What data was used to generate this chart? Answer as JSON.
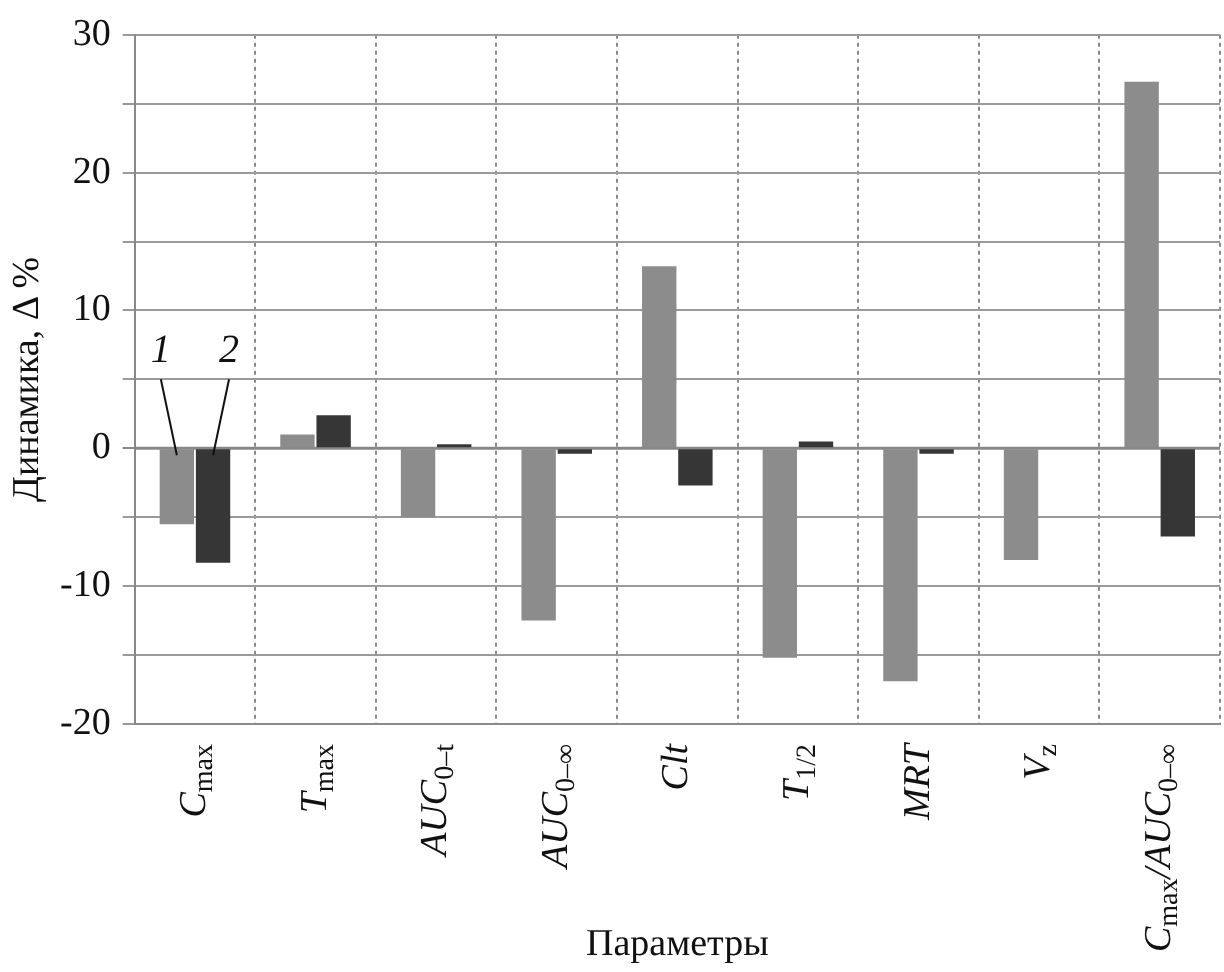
{
  "chart_data": {
    "type": "bar",
    "xlabel": "Параметры",
    "ylabel": "Динамика, Δ %",
    "categories": [
      "C$_{max}$",
      "T$_{max}$",
      "AUC$_{0–t}$",
      "AUC$_{0–∞}$",
      "Clt",
      "T$_{1/2}$",
      "MRT",
      "V$_{z}$",
      "C$_{max}$/AUC$_{0–∞}$"
    ],
    "series": [
      {
        "color": "#8c8c8c",
        "values": [
          -5.5,
          1.0,
          -5.0,
          -12.5,
          13.2,
          -15.2,
          -16.9,
          -8.1,
          26.6
        ]
      },
      {
        "color": "#363636",
        "values": [
          -8.3,
          2.4,
          0.3,
          -0.4,
          -2.7,
          0.5,
          -0.4,
          0,
          -6.4
        ]
      }
    ],
    "ylim": [
      -20,
      30
    ],
    "yticks": [
      -20,
      {
        "value": -15,
        "label": null
      },
      -10,
      {
        "value": -5,
        "label": null
      },
      0,
      {
        "value": 5,
        "label": null
      },
      10,
      {
        "value": 15,
        "label": null
      },
      20,
      {
        "value": 25,
        "label": null
      },
      30
    ],
    "annotations": [
      {
        "text": "1",
        "x": "C$_{max}$",
        "y": -0.5
      },
      {
        "text": "2",
        "x": "C$_{max}$",
        "y": -0.5
      }
    ],
    "grid": true,
    "legend": false
  }
}
